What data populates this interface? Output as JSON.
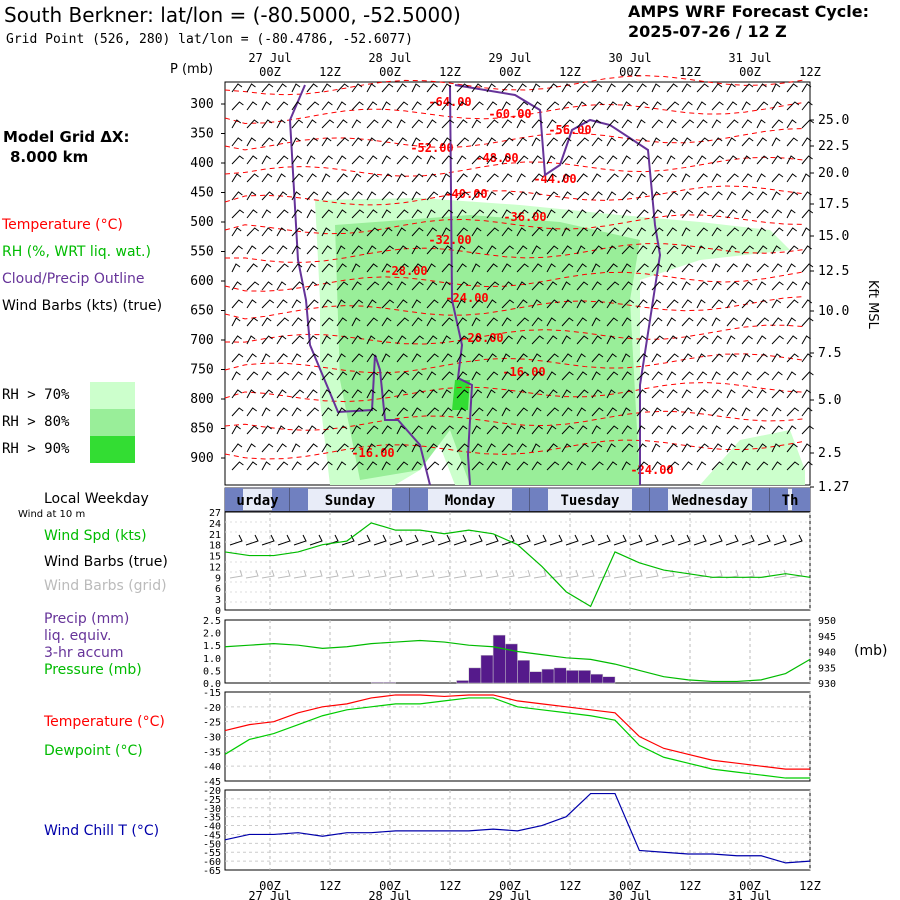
{
  "header": {
    "title": "South Berkner:  lat/lon = (-80.5000, -52.5000)",
    "gridpoint": "Grid Point (526, 280) lat/lon = (-80.4786, -52.6077)",
    "cycle_line1": "AMPS WRF Forecast Cycle:",
    "cycle_line2": "2025-07-26 / 12  Z",
    "model_grid_label": "Model Grid ΔX:",
    "model_grid_value": "8.000 km"
  },
  "time_axis": {
    "ticks": [
      "00Z",
      "12Z",
      "00Z",
      "12Z",
      "00Z",
      "12Z",
      "00Z",
      "12Z",
      "00Z",
      "12Z"
    ],
    "dates": [
      "27 Jul",
      "28 Jul",
      "29 Jul",
      "30 Jul",
      "31 Jul"
    ]
  },
  "legend": {
    "temperature": "Temperature (°C)",
    "rh": "RH (%, WRT liq. wat.)",
    "cloud": "Cloud/Precip Outline",
    "wind": "Wind Barbs (kts) (true)",
    "rh70": "RH > 70%",
    "rh80": "RH > 80%",
    "rh90": "RH > 90%",
    "colors": {
      "rh70": "#ccffcc",
      "rh80": "#99ee99",
      "rh90": "#33dd33",
      "temp": "#ff0000",
      "cloud": "#663399",
      "pressure": "#00bb00",
      "dewpoint": "#00cc00",
      "chill": "#0000aa",
      "precip": "#551a8b"
    }
  },
  "chart_data": [
    {
      "type": "heatmap",
      "ylabel": "P (mb)",
      "y2label": "Kft MSL",
      "pressure_levels": [
        "300",
        "350",
        "400",
        "450",
        "500",
        "550",
        "600",
        "650",
        "700",
        "750",
        "800",
        "850",
        "900"
      ],
      "height_ticks": [
        "25.0",
        "22.5",
        "20.0",
        "17.5",
        "15.0",
        "12.5",
        "10.0",
        "7.5",
        "5.0",
        "2.5",
        "1.27"
      ],
      "isotherm_labels": [
        "-64.00",
        "-60.00",
        "-56.00",
        "-52.00",
        "-48.00",
        "-44.00",
        "-40.00",
        "-36.00",
        "-32.00",
        "-28.00",
        "-24.00",
        "-20.00",
        "-16.00",
        "-16.00",
        "-24.00"
      ]
    },
    {
      "type": "line",
      "title": "Local Weekday",
      "days": [
        "urday",
        "Sunday",
        "Monday",
        "Tuesday",
        "Wednesday",
        "Th"
      ],
      "sublabel": "Wind at 10 m",
      "labels": [
        "Wind Spd (kts)",
        "Wind Barbs (true)",
        "Wind Barbs (grid)"
      ],
      "yticks": [
        "27",
        "24",
        "21",
        "18",
        "15",
        "12",
        "9",
        "6",
        "3",
        "0"
      ],
      "ylim": [
        0,
        27
      ],
      "x_hours": [
        0,
        6,
        12,
        18,
        24,
        30,
        36,
        42,
        48,
        54,
        60,
        66,
        72,
        78,
        84,
        90,
        96,
        102,
        108,
        114,
        120,
        126,
        132,
        138,
        144
      ],
      "wind_speed": [
        16,
        15,
        15,
        16,
        18,
        19,
        24,
        22,
        22,
        21,
        22,
        21,
        18,
        12,
        5,
        1,
        16,
        13,
        11,
        10,
        9,
        9,
        9,
        10,
        9
      ]
    },
    {
      "type": "bar",
      "labels": [
        "Precip (mm)",
        "liq. equiv.",
        "3-hr accum",
        "Pressure (mb)"
      ],
      "left_ticks": [
        "2.5",
        "2.0",
        "1.5",
        "1.0",
        "0.5",
        "0.0"
      ],
      "right_ticks": [
        "950",
        "945",
        "940",
        "935",
        "930"
      ],
      "right_label": "(mb)",
      "ylim": [
        0,
        2.5
      ],
      "y2lim": [
        930,
        950
      ],
      "x_hours": [
        0,
        6,
        12,
        18,
        24,
        30,
        36,
        42,
        48,
        54,
        60,
        66,
        72,
        78,
        84,
        90,
        96,
        102,
        108,
        114,
        120,
        126,
        132,
        138,
        144
      ],
      "pressure": [
        941.5,
        942,
        942.5,
        942,
        941,
        941.5,
        942.5,
        943,
        943.5,
        943,
        942,
        941.5,
        940,
        939,
        938,
        937.5,
        936,
        934,
        932,
        931,
        930.5,
        930.5,
        931,
        933,
        937.5
      ],
      "precip_bars": [
        {
          "x": 36,
          "v": 0.03
        },
        {
          "x": 39,
          "v": 0.03
        },
        {
          "x": 57,
          "v": 0.1
        },
        {
          "x": 60,
          "v": 0.6
        },
        {
          "x": 63,
          "v": 1.1
        },
        {
          "x": 66,
          "v": 1.9
        },
        {
          "x": 69,
          "v": 1.55
        },
        {
          "x": 72,
          "v": 0.9
        },
        {
          "x": 75,
          "v": 0.45
        },
        {
          "x": 78,
          "v": 0.55
        },
        {
          "x": 81,
          "v": 0.6
        },
        {
          "x": 84,
          "v": 0.5
        },
        {
          "x": 87,
          "v": 0.5
        },
        {
          "x": 90,
          "v": 0.35
        },
        {
          "x": 93,
          "v": 0.25
        }
      ]
    },
    {
      "type": "line",
      "labels": [
        "Temperature (°C)",
        "Dewpoint (°C)"
      ],
      "yticks": [
        "-15",
        "-20",
        "-25",
        "-30",
        "-35",
        "-40",
        "-45"
      ],
      "ylim": [
        -45,
        -15
      ],
      "x_hours": [
        0,
        6,
        12,
        18,
        24,
        30,
        36,
        42,
        48,
        54,
        60,
        66,
        72,
        78,
        84,
        90,
        96,
        102,
        108,
        114,
        120,
        126,
        132,
        138,
        144
      ],
      "temperature": [
        -28,
        -26,
        -25,
        -22,
        -20,
        -19,
        -17,
        -16,
        -16,
        -16.5,
        -16,
        -16,
        -18,
        -19,
        -20,
        -21,
        -22,
        -30,
        -34,
        -36,
        -38,
        -39,
        -40,
        -41,
        -41
      ],
      "dewpoint": [
        -36,
        -31,
        -29,
        -26,
        -23,
        -21,
        -20,
        -19,
        -19,
        -18,
        -17,
        -17,
        -20,
        -21,
        -22,
        -23,
        -24.5,
        -33,
        -37,
        -39,
        -41,
        -42,
        -43,
        -44,
        -44
      ]
    },
    {
      "type": "line",
      "labels": [
        "Wind Chill T (°C)"
      ],
      "yticks": [
        "-20",
        "-25",
        "-30",
        "-35",
        "-40",
        "-45",
        "-50",
        "-55",
        "-60",
        "-65"
      ],
      "ylim": [
        -65,
        -20
      ],
      "x_hours": [
        0,
        6,
        12,
        18,
        24,
        30,
        36,
        42,
        48,
        54,
        60,
        66,
        72,
        78,
        84,
        90,
        96,
        102,
        108,
        114,
        120,
        126,
        132,
        138,
        144
      ],
      "wind_chill": [
        -48,
        -45,
        -45,
        -44,
        -46,
        -44,
        -44,
        -43,
        -43,
        -43,
        -43,
        -42,
        -43,
        -40,
        -35,
        -22,
        -22,
        -54,
        -55,
        -56,
        -56,
        -57,
        -57,
        -61,
        -60
      ]
    }
  ]
}
